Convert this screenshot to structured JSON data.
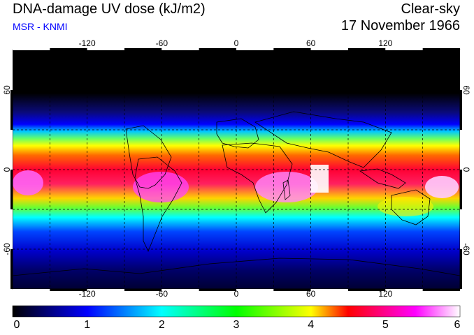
{
  "header": {
    "title": "DNA-damage UV dose (kJ/m2)",
    "subtitle": "MSR - KNMI",
    "mode": "Clear-sky",
    "date": "17 November 1966"
  },
  "colors": {
    "subtitle": "#0000ff",
    "scale": [
      "#000000",
      "#0000ff",
      "#00ffff",
      "#00ff00",
      "#ffff00",
      "#ff0000",
      "#ff00ff",
      "#ffffff"
    ]
  },
  "map": {
    "projection": "equirectangular",
    "lon_range": [
      -180,
      180
    ],
    "lat_range": [
      -90,
      90
    ],
    "grid_lons": [
      -150,
      -120,
      -90,
      -60,
      -30,
      0,
      30,
      60,
      90,
      120,
      150
    ],
    "grid_lats": [
      -60,
      -30,
      0,
      30,
      60
    ],
    "lon_tick_labels": [
      "-120",
      "-60",
      "0",
      "60",
      "120"
    ],
    "lat_tick_labels_left": [
      "60",
      "0",
      "-60"
    ],
    "lat_tick_labels_right": [
      "60",
      "0",
      "-60"
    ]
  },
  "colorbar": {
    "min": 0,
    "max": 6,
    "labels": [
      "0",
      "1",
      "2",
      "3",
      "4",
      "5",
      "6"
    ]
  }
}
